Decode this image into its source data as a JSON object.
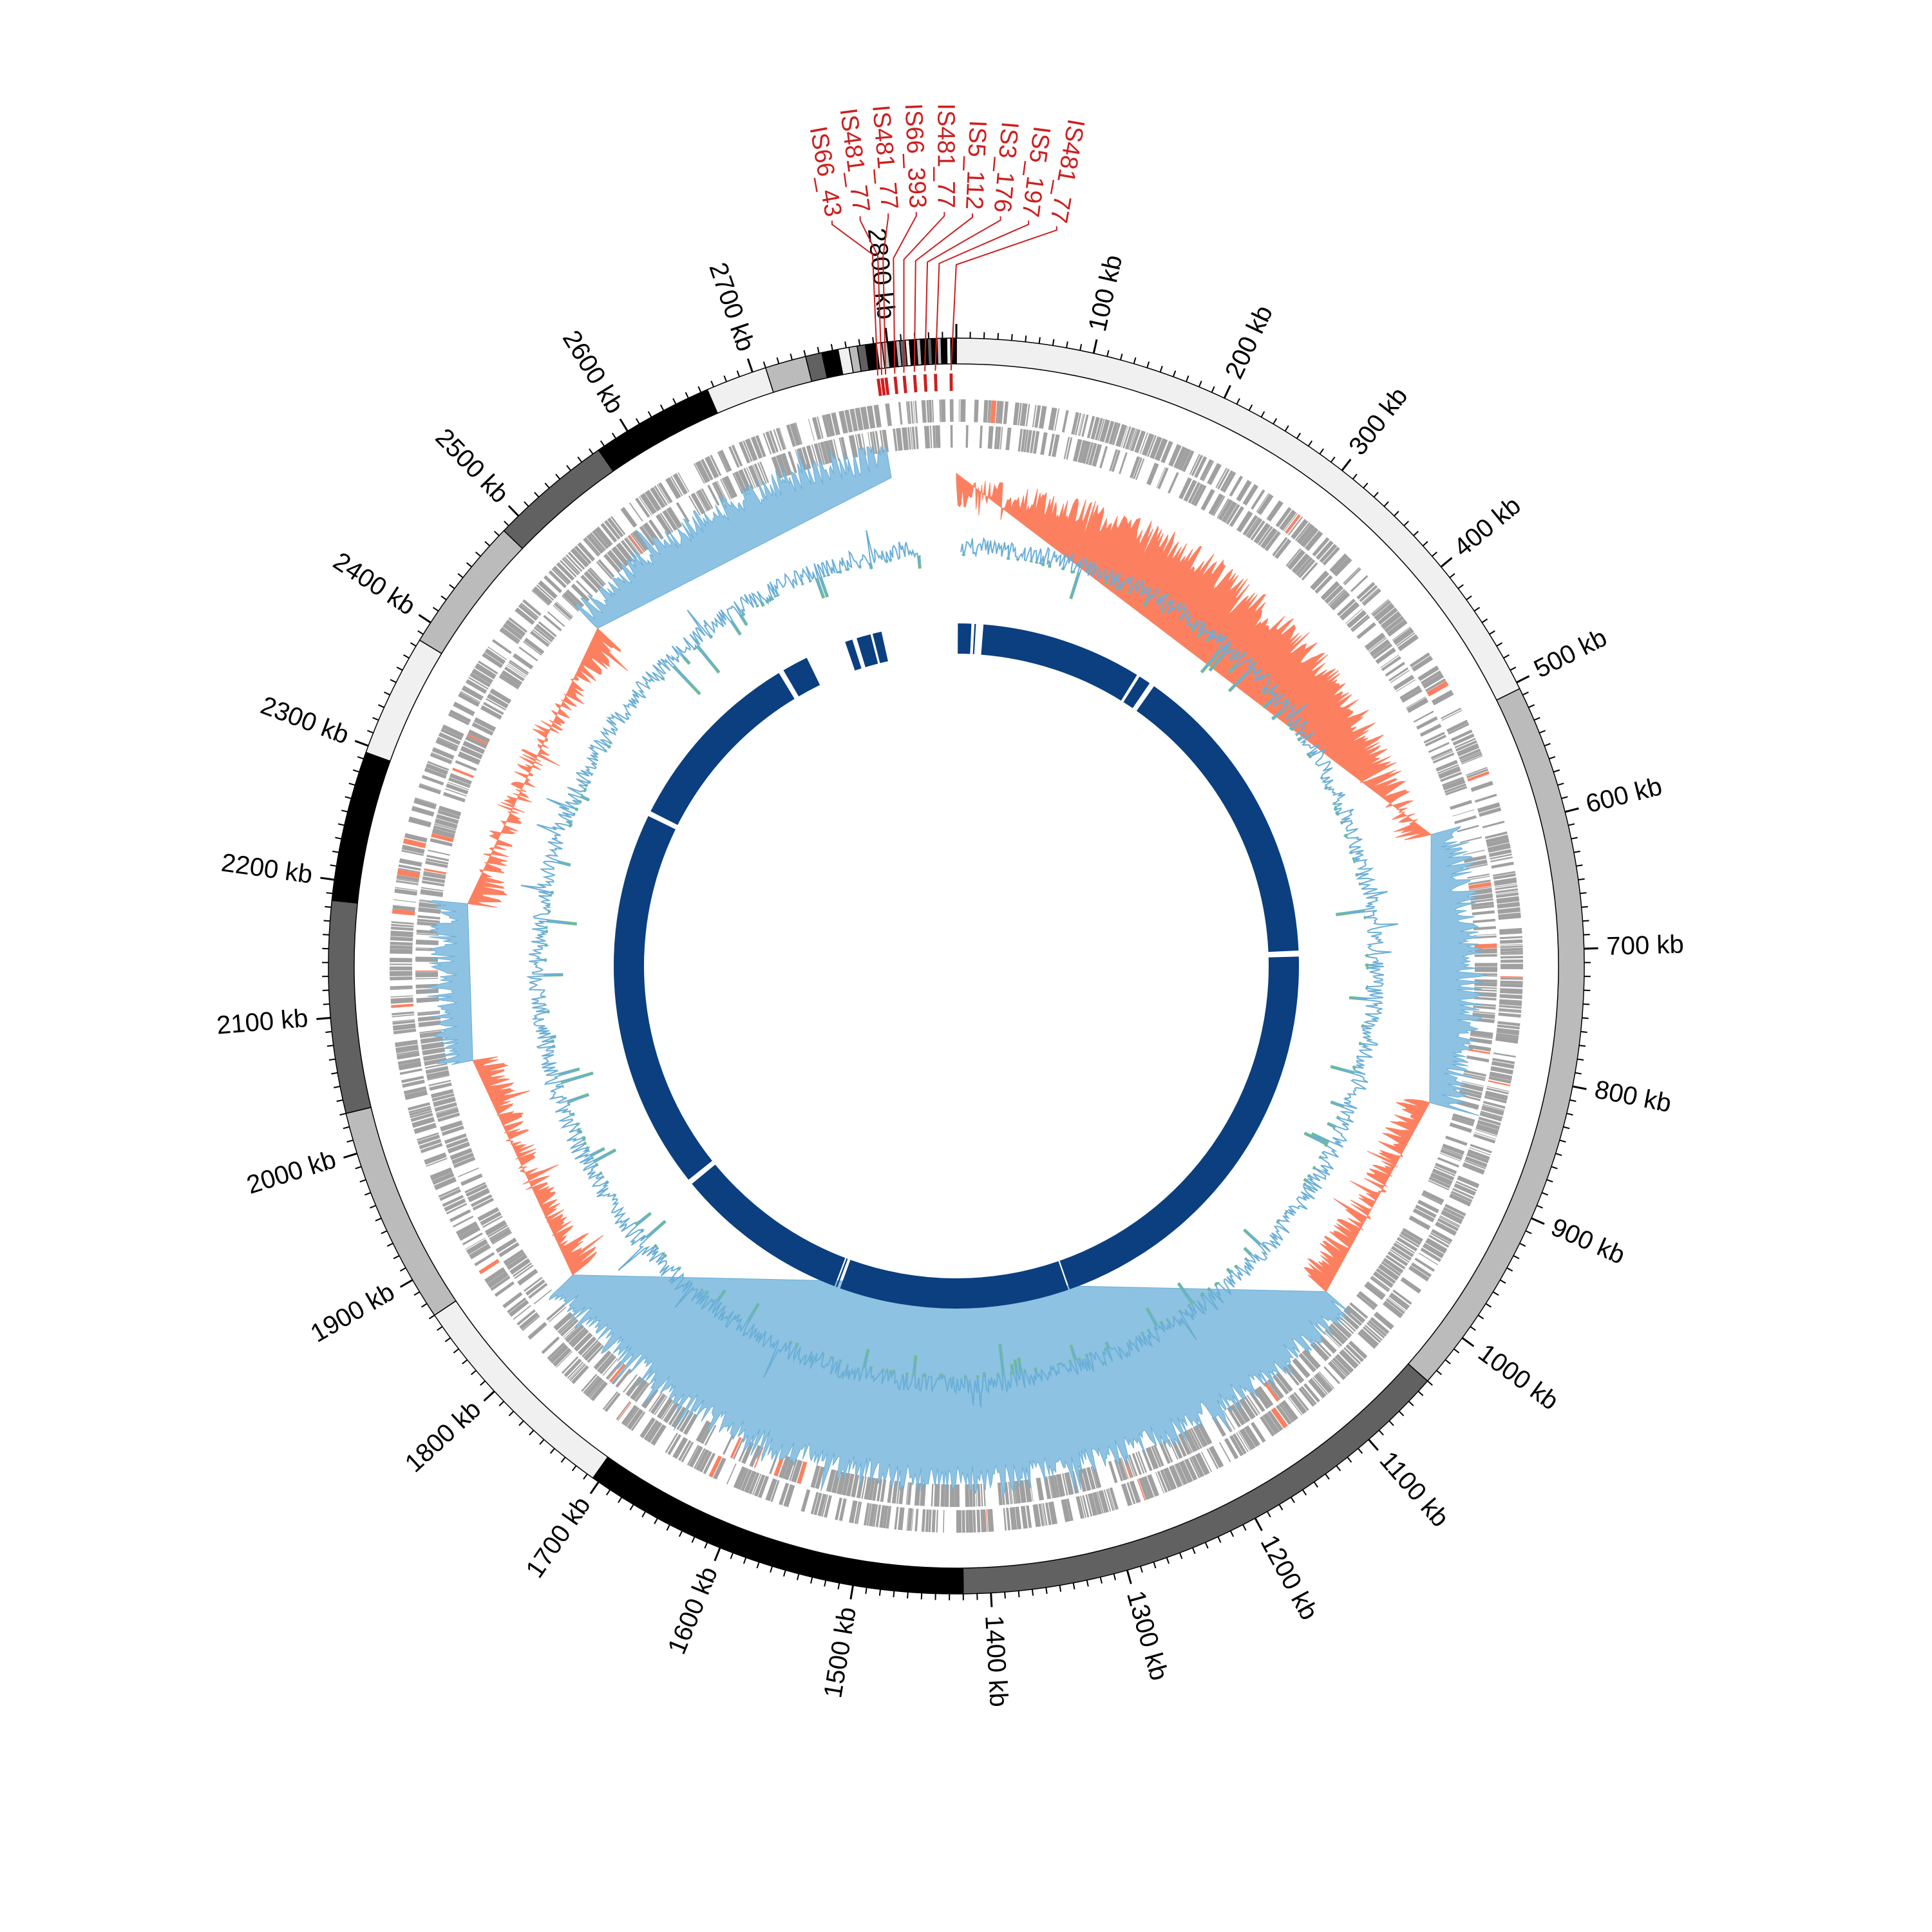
{
  "chart_data": {
    "type": "circular-genome",
    "total_kb": 2850,
    "tick_labels": [
      "100 kb",
      "200 kb",
      "300 kb",
      "400 kb",
      "500 kb",
      "600 kb",
      "700 kb",
      "800 kb",
      "900 kb",
      "1000 kb",
      "1100 kb",
      "1200 kb",
      "1300 kb",
      "1400 kb",
      "1500 kb",
      "1600 kb",
      "1700 kb",
      "1800 kb",
      "1900 kb",
      "2000 kb",
      "2100 kb",
      "2200 kb",
      "2300 kb",
      "2400 kb",
      "2500 kb",
      "2600 kb",
      "2700 kb",
      "2800 kb"
    ],
    "tick_values_kb": [
      100,
      200,
      300,
      400,
      500,
      600,
      700,
      800,
      900,
      1000,
      1100,
      1200,
      1300,
      1400,
      1500,
      1600,
      1700,
      1800,
      1900,
      2000,
      2100,
      2200,
      2300,
      2400,
      2500,
      2600,
      2700,
      2800
    ],
    "contig_bands": [
      {
        "start": 0,
        "end": 505,
        "color": "#f0f0f0"
      },
      {
        "start": 505,
        "end": 1040,
        "color": "#bbbbbb"
      },
      {
        "start": 1040,
        "end": 1420,
        "color": "#616161"
      },
      {
        "start": 1420,
        "end": 1705,
        "color": "#000000"
      },
      {
        "start": 1705,
        "end": 1870,
        "color": "#f0f0f0"
      },
      {
        "start": 1870,
        "end": 2030,
        "color": "#bbbbbb"
      },
      {
        "start": 2030,
        "end": 2185,
        "color": "#616161"
      },
      {
        "start": 2185,
        "end": 2295,
        "color": "#000000"
      },
      {
        "start": 2295,
        "end": 2385,
        "color": "#f0f0f0"
      },
      {
        "start": 2385,
        "end": 2485,
        "color": "#bbbbbb"
      },
      {
        "start": 2485,
        "end": 2575,
        "color": "#616161"
      },
      {
        "start": 2575,
        "end": 2665,
        "color": "#000000"
      },
      {
        "start": 2665,
        "end": 2710,
        "color": "#f0f0f0"
      },
      {
        "start": 2710,
        "end": 2740,
        "color": "#bbbbbb"
      },
      {
        "start": 2740,
        "end": 2752,
        "color": "#616161"
      },
      {
        "start": 2752,
        "end": 2764,
        "color": "#000000"
      },
      {
        "start": 2764,
        "end": 2772,
        "color": "#f0f0f0"
      },
      {
        "start": 2772,
        "end": 2778,
        "color": "#bbbbbb"
      },
      {
        "start": 2778,
        "end": 2784,
        "color": "#616161"
      },
      {
        "start": 2784,
        "end": 2792,
        "color": "#000000"
      },
      {
        "start": 2792,
        "end": 2796,
        "color": "#f0f0f0"
      },
      {
        "start": 2796,
        "end": 2800,
        "color": "#bbbbbb"
      },
      {
        "start": 2800,
        "end": 2806,
        "color": "#000000"
      },
      {
        "start": 2806,
        "end": 2809,
        "color": "#bbbbbb"
      },
      {
        "start": 2809,
        "end": 2813,
        "color": "#616161"
      },
      {
        "start": 2813,
        "end": 2816,
        "color": "#f0f0f0"
      },
      {
        "start": 2816,
        "end": 2821,
        "color": "#000000"
      },
      {
        "start": 2821,
        "end": 2824,
        "color": "#bbbbbb"
      },
      {
        "start": 2824,
        "end": 2829,
        "color": "#000000"
      },
      {
        "start": 2829,
        "end": 2832,
        "color": "#616161"
      },
      {
        "start": 2832,
        "end": 2836,
        "color": "#000000"
      },
      {
        "start": 2836,
        "end": 2839,
        "color": "#bbbbbb"
      },
      {
        "start": 2839,
        "end": 2843,
        "color": "#000000"
      },
      {
        "start": 2843,
        "end": 2846,
        "color": "#f0f0f0"
      },
      {
        "start": 2846,
        "end": 2850,
        "color": "#000000"
      }
    ],
    "is_elements": [
      {
        "label": "IS66_43",
        "kb": 2790
      },
      {
        "label": "IS481_77",
        "kb": 2793
      },
      {
        "label": "IS481_77",
        "kb": 2796
      },
      {
        "label": "IS66_393",
        "kb": 2803
      },
      {
        "label": "IS481_77",
        "kb": 2810
      },
      {
        "label": "IS5_112",
        "kb": 2818
      },
      {
        "label": "IS3_176",
        "kb": 2826
      },
      {
        "label": "IS5_197",
        "kb": 2834
      },
      {
        "label": "IS481_77",
        "kb": 2846
      }
    ],
    "skew_track": {
      "positive_color": "#fc8060",
      "negative_color": "#8dc2e2",
      "segments": [
        {
          "start": 0,
          "end": 590,
          "sign": "positive"
        },
        {
          "start": 590,
          "end": 840,
          "sign": "negative"
        },
        {
          "start": 840,
          "end": 1040,
          "sign": "positive"
        },
        {
          "start": 1040,
          "end": 1830,
          "sign": "negative"
        },
        {
          "start": 1830,
          "end": 2050,
          "sign": "positive"
        },
        {
          "start": 2050,
          "end": 2195,
          "sign": "negative"
        },
        {
          "start": 2195,
          "end": 2480,
          "sign": "positive"
        },
        {
          "start": 2480,
          "end": 2790,
          "sign": "negative"
        }
      ]
    },
    "gc_track": {
      "line_color": "#6aaed6",
      "fill_color": "#74c476"
    },
    "gene_track": {
      "color": "#a0a0a0",
      "highlight_color": "#fc8060"
    },
    "is_mark_color": "#cc1f1f",
    "coverage_ring": {
      "color": "#0b3f7f",
      "segments": [
        {
          "start": 2,
          "end": 20
        },
        {
          "start": 24,
          "end": 26
        },
        {
          "start": 36,
          "end": 252
        },
        {
          "start": 256,
          "end": 272
        },
        {
          "start": 279,
          "end": 692
        },
        {
          "start": 700,
          "end": 1272
        },
        {
          "start": 1274,
          "end": 1582
        },
        {
          "start": 1586,
          "end": 1588
        },
        {
          "start": 1590,
          "end": 1825
        },
        {
          "start": 1832,
          "end": 2343
        },
        {
          "start": 2350,
          "end": 2603
        },
        {
          "start": 2610,
          "end": 2645
        },
        {
          "start": 2700,
          "end": 2710
        },
        {
          "start": 2716,
          "end": 2735
        },
        {
          "start": 2738,
          "end": 2750
        }
      ]
    }
  }
}
